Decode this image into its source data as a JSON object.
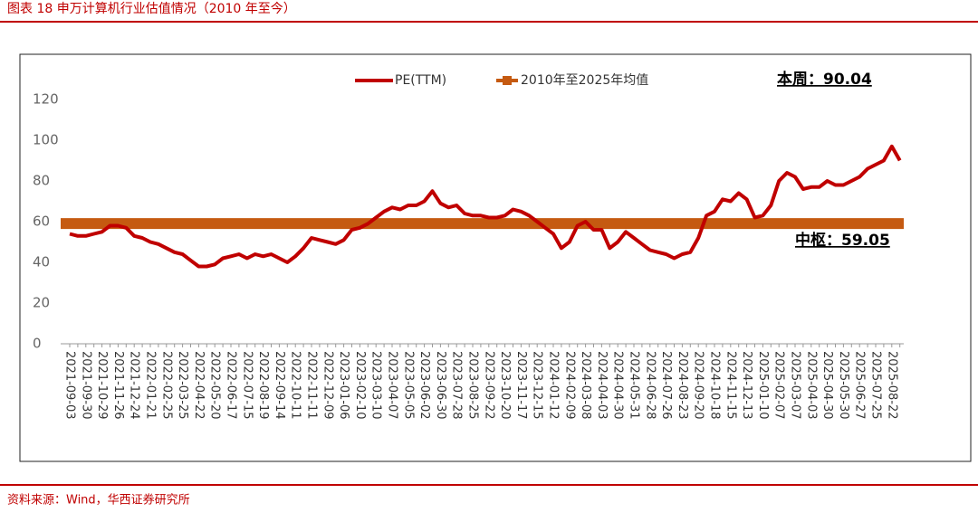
{
  "chart_data": {
    "type": "line",
    "title": "图表 18 申万计算机行业估值情况（2010 年至今）",
    "source": "资料来源：Wind，华西证券研究所",
    "annotations": [
      "本周：90.04",
      "中枢：59.05"
    ],
    "categories": [
      "2021-09-03",
      null,
      "2021-09-30",
      null,
      "2021-10-29",
      null,
      "2021-11-26",
      null,
      "2021-12-24",
      null,
      "2022-01-21",
      null,
      "2022-02-25",
      null,
      "2022-03-25",
      null,
      "2022-04-22",
      null,
      "2022-05-20",
      null,
      "2022-06-17",
      null,
      "2022-07-15",
      null,
      "2022-08-19",
      null,
      "2022-09-14",
      null,
      "2022-10-11",
      null,
      "2022-11-11",
      null,
      "2022-12-09",
      null,
      "2023-01-06",
      null,
      "2023-02-10",
      null,
      "2023-03-10",
      null,
      "2023-04-07",
      null,
      "2023-05-05",
      null,
      "2023-06-02",
      null,
      "2023-06-30",
      null,
      "2023-07-28",
      null,
      "2023-08-25",
      null,
      "2023-09-22",
      null,
      "2023-10-20",
      null,
      "2023-11-17",
      null,
      "2023-12-15",
      null,
      "2024-01-12",
      null,
      "2024-02-09",
      null,
      "2024-03-08",
      null,
      "2024-04-03",
      null,
      "2024-04-30",
      null,
      "2024-05-31",
      null,
      "2024-06-28",
      null,
      "2024-07-26",
      null,
      "2024-08-23",
      null,
      "2024-09-20",
      null,
      "2024-10-18",
      null,
      "2024-11-15",
      null,
      "2024-12-13",
      null,
      "2025-01-10",
      null,
      "2025-02-07",
      null,
      "2025-03-07",
      null,
      "2025-04-03",
      null,
      "2025-04-30",
      null,
      "2025-05-30",
      null,
      "2025-06-27",
      null,
      "2025-07-25",
      null,
      "2025-08-22",
      null
    ],
    "series": [
      {
        "name": "PE(TTM)",
        "color": "#c00000",
        "values": [
          54,
          53,
          53,
          54,
          55,
          58,
          58,
          57,
          53,
          52,
          50,
          49,
          47,
          45,
          44,
          41,
          38,
          38,
          39,
          42,
          43,
          44,
          42,
          44,
          43,
          44,
          42,
          40,
          43,
          47,
          52,
          51,
          50,
          49,
          51,
          56,
          57,
          59,
          62,
          65,
          67,
          66,
          68,
          68,
          70,
          75,
          69,
          67,
          68,
          64,
          63,
          63,
          62,
          62,
          63,
          66,
          65,
          63,
          60,
          57,
          54,
          47,
          50,
          58,
          60,
          56,
          56,
          47,
          50,
          55,
          52,
          49,
          46,
          45,
          44,
          42,
          44,
          45,
          52,
          63,
          65,
          71,
          70,
          74,
          71,
          62,
          63,
          68,
          80,
          84,
          82,
          76,
          77,
          77,
          80,
          78,
          78,
          80,
          82,
          86,
          88,
          90,
          97,
          90.04
        ]
      },
      {
        "name": "2010年至2025年均值",
        "color": "#c55a11",
        "value": 59.05
      }
    ],
    "ylim": [
      0,
      120
    ],
    "yticks": [
      0,
      20,
      40,
      60,
      80,
      100,
      120
    ],
    "grid": false,
    "legend": "top"
  }
}
